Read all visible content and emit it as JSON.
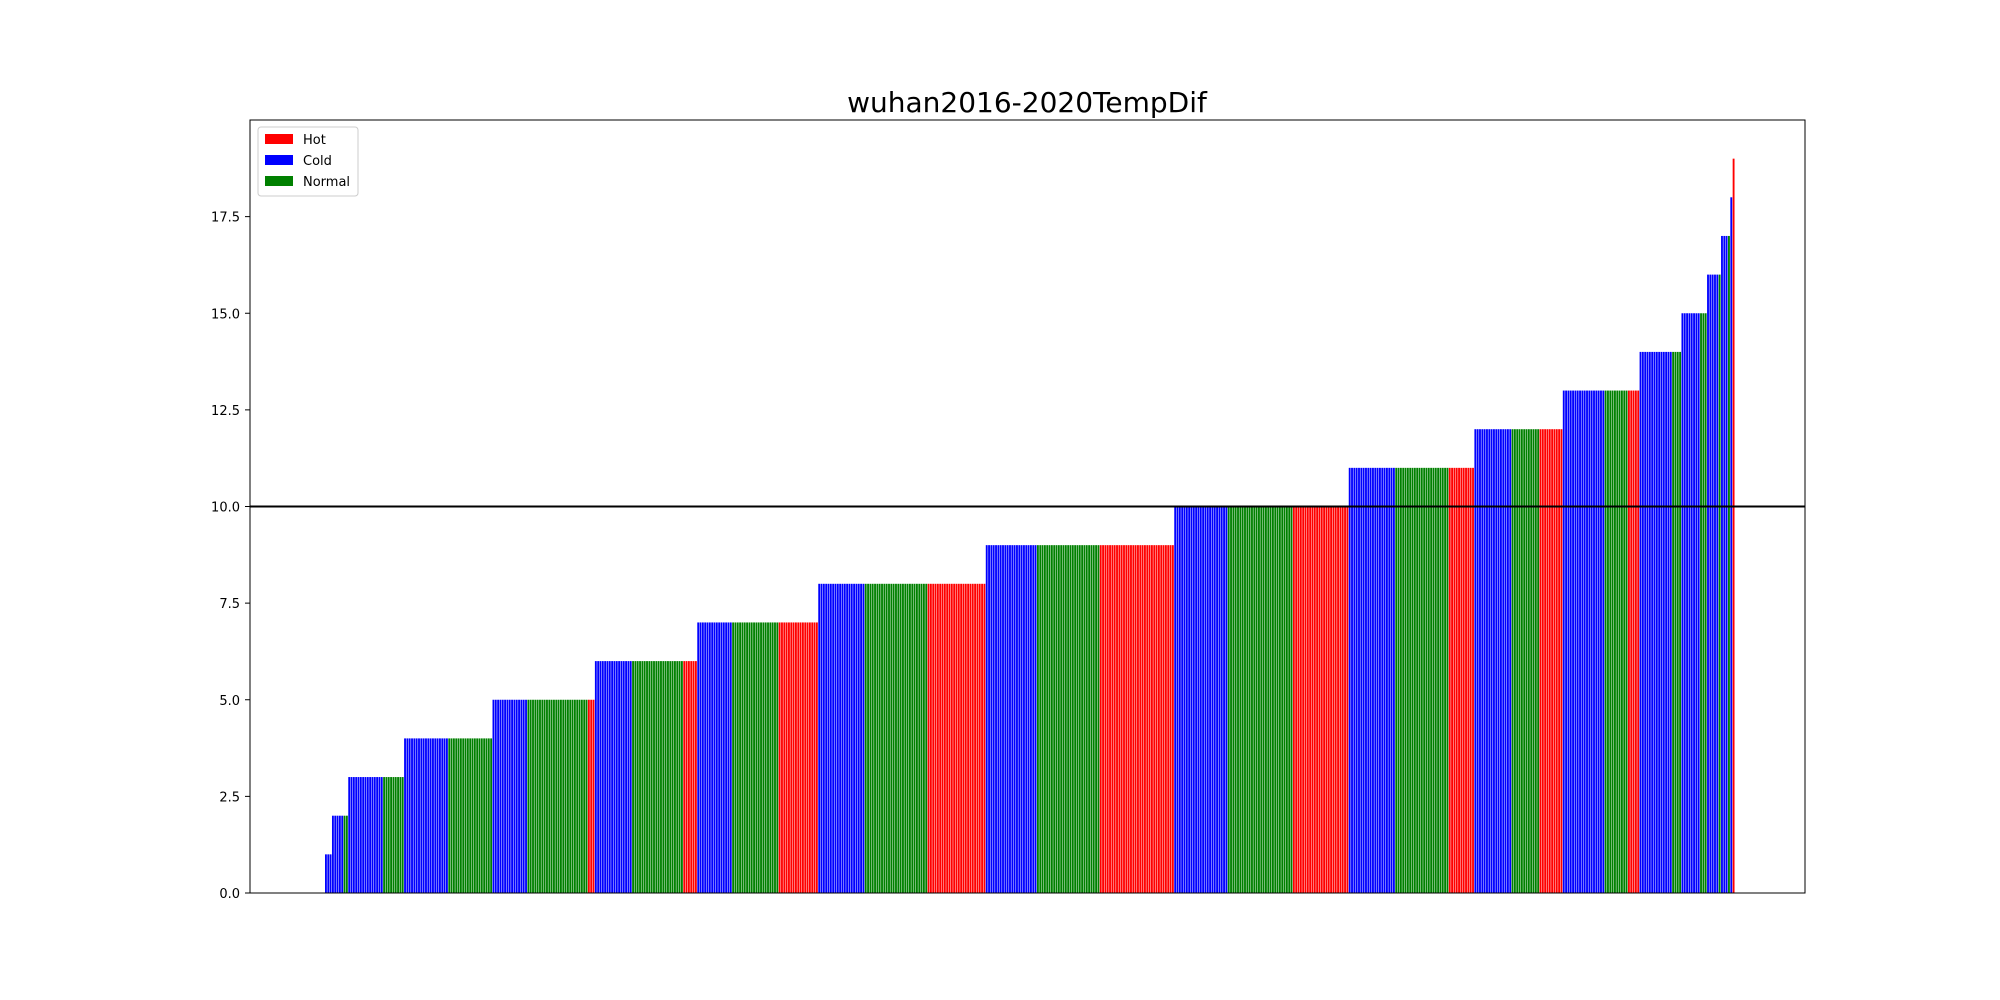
{
  "chart_data": {
    "type": "bar",
    "title": "wuhan2016-2020TempDif",
    "xlabel": "",
    "ylabel": "",
    "ylim": [
      0,
      20
    ],
    "xticks": [],
    "yticks": [
      "0.0",
      "2.5",
      "5.0",
      "7.5",
      "10.0",
      "12.5",
      "15.0",
      "17.5"
    ],
    "ytick_values": [
      0,
      2.5,
      5,
      7.5,
      10,
      12.5,
      15,
      17.5
    ],
    "reference_line": {
      "y": 10,
      "color": "#000000"
    },
    "legend": {
      "placement": "top-left",
      "entries": [
        {
          "label": "Hot",
          "color": "#ff0000"
        },
        {
          "label": "Cold",
          "color": "#0000ff"
        },
        {
          "label": "Normal",
          "color": "#008000"
        }
      ]
    },
    "bar_color_map": {
      "Hot": "#ff0000",
      "Cold": "#0000ff",
      "Normal": "#008000"
    },
    "groups": [
      {
        "value": 1,
        "counts": {
          "Cold": 3,
          "Normal": 0,
          "Hot": 0
        }
      },
      {
        "value": 2,
        "counts": {
          "Cold": 5,
          "Normal": 2,
          "Hot": 0
        }
      },
      {
        "value": 3,
        "counts": {
          "Cold": 15,
          "Normal": 9,
          "Hot": 0
        }
      },
      {
        "value": 4,
        "counts": {
          "Cold": 19,
          "Normal": 19,
          "Hot": 0
        }
      },
      {
        "value": 5,
        "counts": {
          "Cold": 15,
          "Normal": 26,
          "Hot": 3
        }
      },
      {
        "value": 6,
        "counts": {
          "Cold": 16,
          "Normal": 22,
          "Hot": 6
        }
      },
      {
        "value": 7,
        "counts": {
          "Cold": 15,
          "Normal": 20,
          "Hot": 17
        }
      },
      {
        "value": 8,
        "counts": {
          "Cold": 20,
          "Normal": 27,
          "Hot": 25
        }
      },
      {
        "value": 9,
        "counts": {
          "Cold": 22,
          "Normal": 27,
          "Hot": 32
        }
      },
      {
        "value": 10,
        "counts": {
          "Cold": 23,
          "Normal": 28,
          "Hot": 24
        }
      },
      {
        "value": 11,
        "counts": {
          "Cold": 20,
          "Normal": 23,
          "Hot": 11
        }
      },
      {
        "value": 12,
        "counts": {
          "Cold": 16,
          "Normal": 12,
          "Hot": 10
        }
      },
      {
        "value": 13,
        "counts": {
          "Cold": 18,
          "Normal": 10,
          "Hot": 5
        }
      },
      {
        "value": 14,
        "counts": {
          "Cold": 14,
          "Normal": 4,
          "Hot": 0
        }
      },
      {
        "value": 15,
        "counts": {
          "Cold": 8,
          "Normal": 3,
          "Hot": 0
        }
      },
      {
        "value": 16,
        "counts": {
          "Cold": 5,
          "Normal": 1,
          "Hot": 0
        }
      },
      {
        "value": 17,
        "counts": {
          "Cold": 3,
          "Normal": 1,
          "Hot": 0
        }
      },
      {
        "value": 18,
        "counts": {
          "Cold": 1,
          "Normal": 0,
          "Hot": 0
        }
      },
      {
        "value": 19,
        "counts": {
          "Cold": 0,
          "Normal": 0,
          "Hot": 1
        }
      }
    ]
  }
}
